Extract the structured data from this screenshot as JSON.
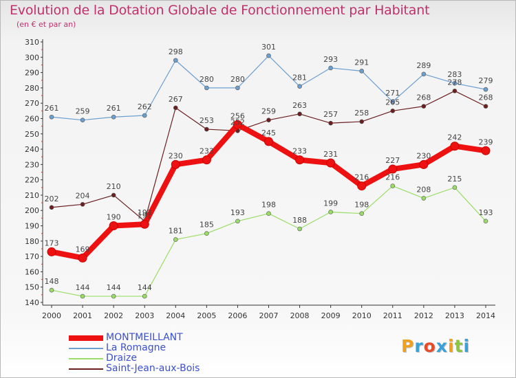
{
  "title": "Evolution de la Dotation Globale de Fonctionnement par Habitant",
  "subtitle": "(en € et par an)",
  "logo": {
    "text": "Proxiti",
    "letters": [
      {
        "ch": "P",
        "color": "#f0a01c"
      },
      {
        "ch": "r",
        "color": "#3aa0d8"
      },
      {
        "ch": "o",
        "color": "#e84a2a"
      },
      {
        "ch": "x",
        "color": "#3aa0d8"
      },
      {
        "ch": "i",
        "color": "#f0a01c"
      },
      {
        "ch": "t",
        "color": "#8cc63e"
      },
      {
        "ch": "i",
        "color": "#3aa0d8"
      }
    ]
  },
  "chart_data": {
    "type": "line",
    "title": "Evolution de la Dotation Globale de Fonctionnement par Habitant",
    "subtitle": "(en € et par an)",
    "xlabel": "",
    "ylabel": "",
    "x": [
      "2000",
      "2001",
      "2002",
      "2003",
      "2004",
      "2005",
      "2006",
      "2007",
      "2008",
      "2009",
      "2010",
      "2011",
      "2012",
      "2013",
      "2014"
    ],
    "ylim": [
      140,
      310
    ],
    "yticks": [
      140,
      150,
      160,
      170,
      180,
      190,
      200,
      210,
      220,
      230,
      240,
      250,
      260,
      270,
      280,
      290,
      300,
      310
    ],
    "grid": false,
    "legend_position": "bottom-left",
    "series": [
      {
        "name": "MONTMEILLANT",
        "color": "#ee1111",
        "values": [
          173,
          169,
          190,
          191,
          230,
          233,
          256,
          245,
          233,
          231,
          216,
          227,
          230,
          242,
          239
        ]
      },
      {
        "name": "La Romagne",
        "color": "#6a9fd0",
        "values": [
          261,
          259,
          261,
          262,
          298,
          280,
          280,
          301,
          281,
          293,
          291,
          271,
          289,
          283,
          279
        ]
      },
      {
        "name": "Draize",
        "color": "#99dd66",
        "values": [
          148,
          144,
          144,
          144,
          181,
          185,
          193,
          198,
          188,
          199,
          198,
          216,
          208,
          215,
          193
        ]
      },
      {
        "name": "Saint-Jean-aux-Bois",
        "color": "#6b1e1e",
        "values": [
          202,
          204,
          210,
          193,
          267,
          253,
          252,
          259,
          263,
          257,
          258,
          265,
          268,
          278,
          268
        ]
      }
    ],
    "data_labels": [
      [
        "173",
        "169",
        "190",
        "191",
        "230",
        "233",
        "256",
        "245",
        "233",
        "231",
        "216",
        "227",
        "230",
        "242",
        "239"
      ],
      [
        "261",
        "259",
        "261",
        "262",
        "298",
        "280",
        "280",
        "301",
        "281",
        "293",
        "291",
        "271",
        "289",
        "283",
        "279"
      ],
      [
        "148",
        "144",
        "144",
        "144",
        "181",
        "185",
        "193",
        "198",
        "188",
        "199",
        "198",
        "216",
        "208",
        "215",
        "193"
      ],
      [
        "202",
        "204",
        "210",
        "193",
        "267",
        "253",
        "252",
        "259",
        "263",
        "257",
        "258",
        "265",
        "268",
        "278",
        "268"
      ]
    ]
  }
}
